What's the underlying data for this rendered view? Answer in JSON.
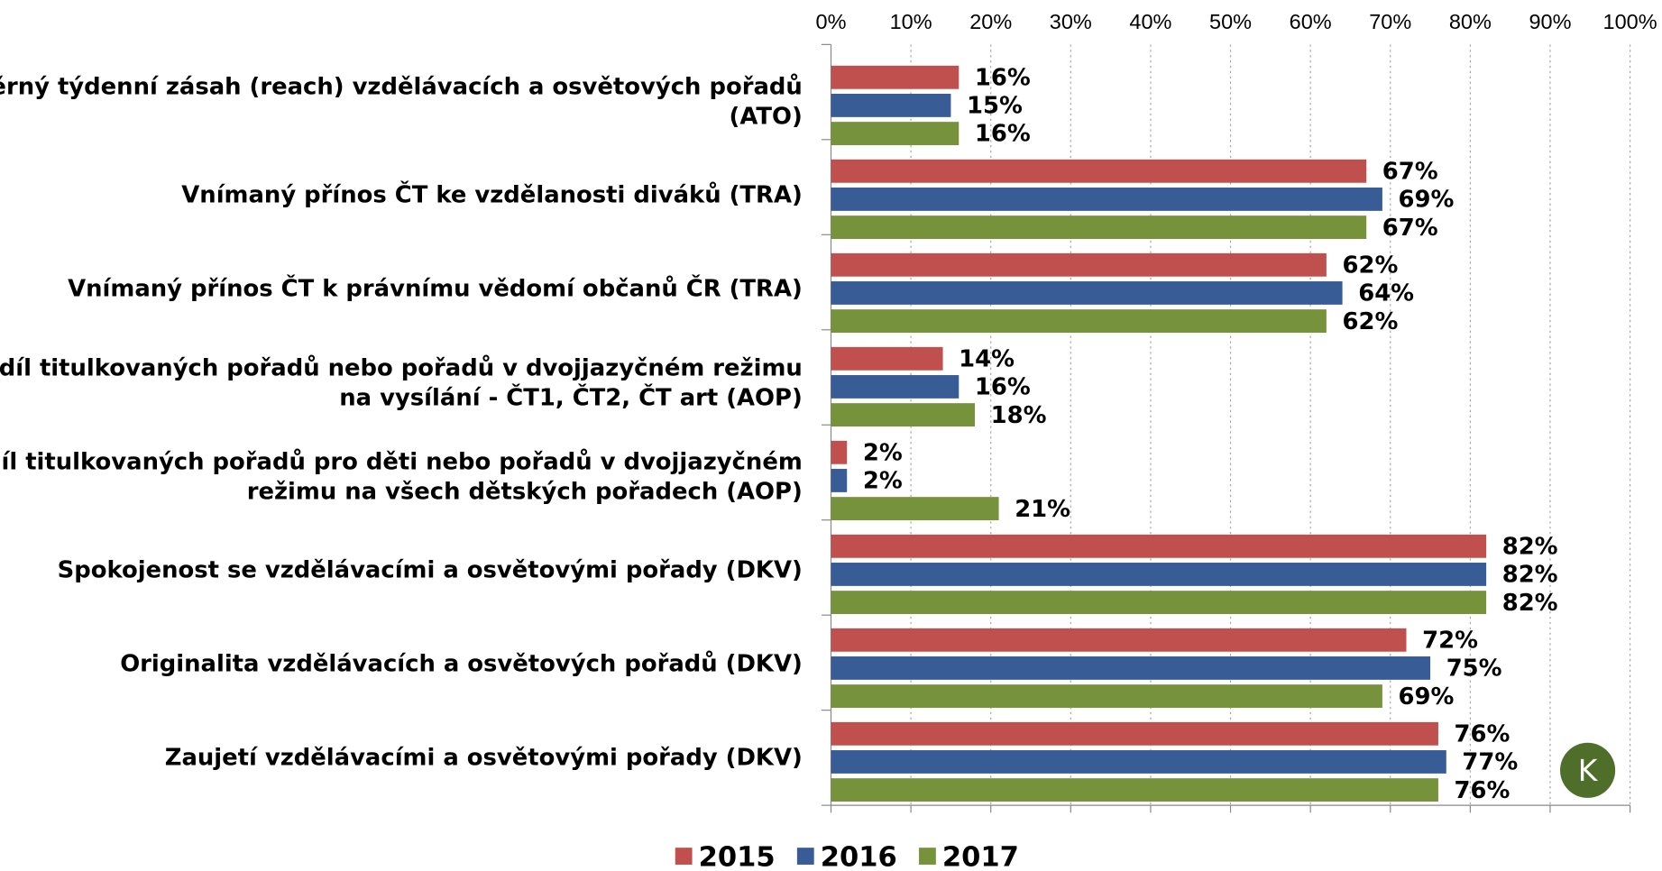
{
  "chart_data": {
    "type": "barh",
    "categories": [
      "Průměrný týdenní zásah (reach) vzdělávacích a osvětových pořadů\n(ATO)",
      "Vnímaný přínos ČT ke vzdělanosti diváků (TRA)",
      "Vnímaný přínos ČT k právnímu vědomí občanů ČR (TRA)",
      "Podíl titulkovaných pořadů nebo pořadů v dvojjazyčném režimu\nna vysílání - ČT1, ČT2, ČT art (AOP)",
      "Podíl titulkovaných pořadů pro děti nebo pořadů v dvojjazyčném\nrežimu na všech dětských pořadech (AOP)",
      "Spokojenost se vzdělávacími a osvětovými pořady (DKV)",
      "Originalita vzdělávacích a osvětových pořadů (DKV)",
      "Zaujetí vzdělávacími a osvětovými pořady (DKV)"
    ],
    "series": [
      {
        "name": "2015",
        "color": "#c0504d",
        "values": [
          16,
          67,
          62,
          14,
          2,
          82,
          72,
          76
        ],
        "value_labels": [
          "16%",
          "67%",
          "62%",
          "14%",
          "2%",
          "82%",
          "72%",
          "76%"
        ]
      },
      {
        "name": "2016",
        "color": "#385d96",
        "values": [
          15,
          69,
          64,
          16,
          2,
          82,
          75,
          77
        ],
        "value_labels": [
          "15%",
          "69%",
          "64%",
          "16%",
          "2%",
          "82%",
          "75%",
          "77%"
        ]
      },
      {
        "name": "2017",
        "color": "#76933c",
        "values": [
          16,
          67,
          62,
          18,
          21,
          82,
          69,
          76
        ],
        "value_labels": [
          "16%",
          "67%",
          "62%",
          "18%",
          "21%",
          "82%",
          "69%",
          "76%"
        ]
      }
    ],
    "xlim": [
      0,
      100
    ],
    "xticks": [
      {
        "value": 0,
        "label": "0%"
      },
      {
        "value": 10,
        "label": "10%"
      },
      {
        "value": 20,
        "label": "20%"
      },
      {
        "value": 30,
        "label": "30%"
      },
      {
        "value": 40,
        "label": "40%"
      },
      {
        "value": 50,
        "label": "50%"
      },
      {
        "value": 60,
        "label": "60%"
      },
      {
        "value": 70,
        "label": "70%"
      },
      {
        "value": 80,
        "label": "80%"
      },
      {
        "value": 90,
        "label": "90%"
      },
      {
        "value": 100,
        "label": "100%"
      }
    ],
    "grid": true,
    "legend": "bottom",
    "logo": "K"
  }
}
